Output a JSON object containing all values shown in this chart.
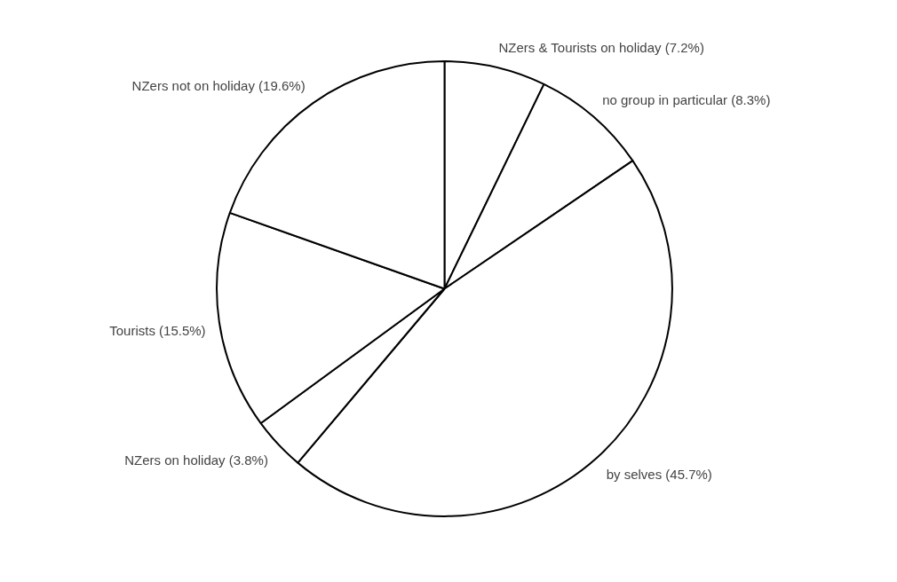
{
  "chart_data": {
    "type": "pie",
    "categories": [
      "NZers & Tourists on holiday (7.2%)",
      "no group in particular (8.3%)",
      "by selves (45.7%)",
      "NZers on holiday (3.8%)",
      "Tourists (15.5%)",
      "NZers not on holiday (19.6%)"
    ],
    "values": [
      7.2,
      8.3,
      45.7,
      3.8,
      15.5,
      19.6
    ],
    "colors": [
      "#ffffff",
      "#ffffff",
      "#ffffff",
      "#ffffff",
      "#ffffff",
      "#ffffff"
    ],
    "legend": false
  }
}
